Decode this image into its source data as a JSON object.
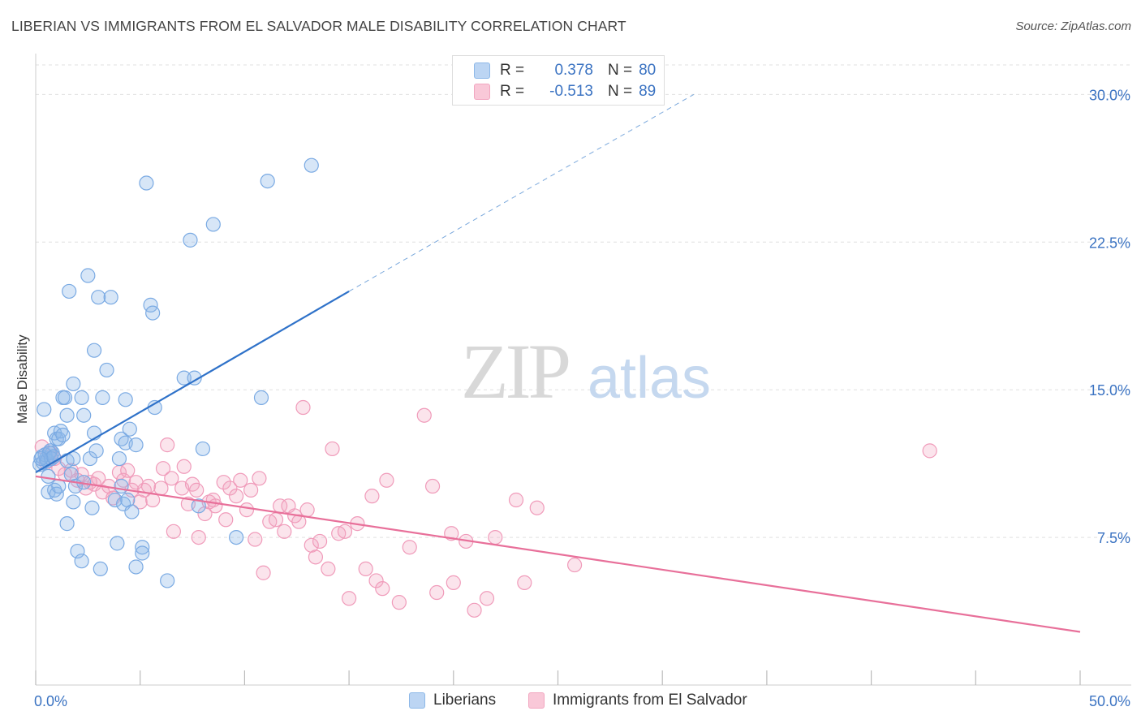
{
  "header": {
    "title": "LIBERIAN VS IMMIGRANTS FROM EL SALVADOR MALE DISABILITY CORRELATION CHART",
    "source": "Source: ZipAtlas.com"
  },
  "watermark": {
    "zip": "ZIP",
    "atlas": "atlas"
  },
  "legend_top": [
    {
      "r_label": "R =",
      "r_value": "0.378",
      "n_label": "N =",
      "n_value": "80",
      "color": "#8db8e8"
    },
    {
      "r_label": "R =",
      "r_value": "-0.513",
      "n_label": "N =",
      "n_value": "89",
      "color": "#f2a6c0"
    }
  ],
  "legend_bottom": [
    {
      "label": "Liberians",
      "color": "#8db8e8"
    },
    {
      "label": "Immigrants from El Salvador",
      "color": "#f2a6c0"
    }
  ],
  "chart_data": {
    "type": "scatter",
    "title": "LIBERIAN VS IMMIGRANTS FROM EL SALVADOR MALE DISABILITY CORRELATION CHART",
    "xlabel": "",
    "ylabel": "Male Disability",
    "xlim": [
      0,
      50
    ],
    "ylim": [
      0,
      31.5
    ],
    "x_tick_labels": [
      "0.0%",
      "50.0%"
    ],
    "y_ticks": [
      7.5,
      15.0,
      22.5,
      30.0
    ],
    "y_tick_labels": [
      "7.5%",
      "15.0%",
      "22.5%",
      "30.0%"
    ],
    "grid": true,
    "legend_position": "top-center",
    "series": [
      {
        "name": "Liberians",
        "color": "#6fa3e0",
        "trend": {
          "x": [
            0,
            15
          ],
          "y": [
            10.8,
            20.0
          ],
          "extended_to": [
            31.5,
            30.0
          ]
        },
        "points": [
          [
            0.2,
            11.2
          ],
          [
            0.3,
            11.6
          ],
          [
            0.4,
            14.0
          ],
          [
            0.5,
            11.5
          ],
          [
            0.6,
            10.6
          ],
          [
            0.6,
            9.8
          ],
          [
            0.7,
            11.9
          ],
          [
            0.8,
            11.8
          ],
          [
            0.9,
            12.8
          ],
          [
            0.9,
            9.9
          ],
          [
            1.0,
            12.5
          ],
          [
            1.0,
            9.7
          ],
          [
            1.1,
            12.5
          ],
          [
            1.1,
            10.1
          ],
          [
            1.2,
            12.9
          ],
          [
            1.3,
            12.7
          ],
          [
            1.3,
            14.6
          ],
          [
            1.4,
            14.6
          ],
          [
            1.5,
            13.7
          ],
          [
            1.5,
            8.2
          ],
          [
            1.5,
            11.4
          ],
          [
            1.6,
            20.0
          ],
          [
            1.7,
            10.7
          ],
          [
            1.8,
            15.3
          ],
          [
            1.8,
            11.5
          ],
          [
            1.8,
            9.3
          ],
          [
            1.9,
            10.1
          ],
          [
            2.0,
            6.8
          ],
          [
            2.2,
            6.3
          ],
          [
            2.2,
            14.6
          ],
          [
            2.3,
            13.7
          ],
          [
            2.3,
            10.3
          ],
          [
            2.5,
            20.8
          ],
          [
            2.6,
            11.5
          ],
          [
            2.7,
            9.0
          ],
          [
            2.8,
            12.8
          ],
          [
            2.8,
            17.0
          ],
          [
            2.9,
            11.9
          ],
          [
            3.0,
            19.7
          ],
          [
            3.1,
            5.9
          ],
          [
            3.2,
            14.6
          ],
          [
            3.4,
            16.0
          ],
          [
            3.6,
            19.7
          ],
          [
            3.8,
            9.4
          ],
          [
            3.9,
            7.2
          ],
          [
            4.0,
            11.5
          ],
          [
            4.1,
            12.5
          ],
          [
            4.1,
            10.1
          ],
          [
            4.2,
            9.2
          ],
          [
            4.3,
            14.5
          ],
          [
            4.3,
            12.3
          ],
          [
            4.4,
            9.4
          ],
          [
            4.5,
            13.0
          ],
          [
            4.6,
            8.8
          ],
          [
            4.8,
            12.2
          ],
          [
            4.8,
            6.0
          ],
          [
            5.1,
            7.0
          ],
          [
            5.1,
            6.7
          ],
          [
            5.3,
            25.5
          ],
          [
            5.5,
            19.3
          ],
          [
            5.6,
            18.9
          ],
          [
            5.7,
            14.1
          ],
          [
            6.3,
            5.3
          ],
          [
            7.1,
            15.6
          ],
          [
            7.4,
            22.6
          ],
          [
            7.6,
            15.6
          ],
          [
            7.8,
            9.1
          ],
          [
            8.0,
            12.0
          ],
          [
            8.5,
            23.4
          ],
          [
            9.6,
            7.5
          ],
          [
            10.8,
            14.6
          ],
          [
            11.1,
            25.6
          ],
          [
            13.2,
            26.4
          ],
          [
            0.35,
            11.3
          ],
          [
            0.45,
            11.7
          ],
          [
            0.55,
            11.4
          ],
          [
            0.65,
            11.8
          ],
          [
            0.75,
            11.5
          ],
          [
            0.85,
            11.6
          ],
          [
            0.25,
            11.5
          ]
        ]
      },
      {
        "name": "Immigrants from El Salvador",
        "color": "#f08db0",
        "trend": {
          "x": [
            0,
            50
          ],
          "y": [
            10.6,
            2.7
          ]
        },
        "points": [
          [
            0.3,
            12.1
          ],
          [
            0.5,
            11.3
          ],
          [
            0.7,
            11.8
          ],
          [
            0.9,
            11.5
          ],
          [
            1.1,
            11.0
          ],
          [
            1.4,
            10.7
          ],
          [
            1.7,
            10.9
          ],
          [
            2.0,
            10.4
          ],
          [
            2.2,
            10.7
          ],
          [
            2.4,
            10.0
          ],
          [
            2.6,
            10.3
          ],
          [
            2.8,
            10.2
          ],
          [
            3.0,
            10.5
          ],
          [
            3.2,
            9.8
          ],
          [
            3.5,
            10.1
          ],
          [
            3.7,
            9.5
          ],
          [
            4.0,
            10.8
          ],
          [
            4.2,
            10.4
          ],
          [
            4.4,
            10.9
          ],
          [
            4.6,
            9.9
          ],
          [
            4.8,
            10.3
          ],
          [
            5.0,
            9.3
          ],
          [
            5.2,
            9.9
          ],
          [
            5.4,
            10.1
          ],
          [
            5.6,
            9.4
          ],
          [
            6.0,
            10.0
          ],
          [
            6.1,
            11.0
          ],
          [
            6.3,
            12.2
          ],
          [
            6.5,
            10.5
          ],
          [
            6.6,
            7.8
          ],
          [
            7.0,
            10.0
          ],
          [
            7.1,
            11.1
          ],
          [
            7.3,
            9.2
          ],
          [
            7.5,
            10.2
          ],
          [
            7.7,
            9.9
          ],
          [
            7.8,
            7.5
          ],
          [
            8.1,
            8.7
          ],
          [
            8.3,
            9.3
          ],
          [
            8.5,
            9.4
          ],
          [
            8.6,
            9.1
          ],
          [
            9.0,
            10.3
          ],
          [
            9.1,
            8.4
          ],
          [
            9.3,
            10.0
          ],
          [
            9.6,
            9.6
          ],
          [
            9.8,
            10.4
          ],
          [
            10.1,
            8.9
          ],
          [
            10.3,
            9.9
          ],
          [
            10.5,
            7.4
          ],
          [
            10.7,
            10.5
          ],
          [
            10.9,
            5.7
          ],
          [
            11.2,
            8.3
          ],
          [
            11.5,
            8.4
          ],
          [
            11.7,
            9.1
          ],
          [
            11.9,
            7.8
          ],
          [
            12.1,
            9.1
          ],
          [
            12.4,
            8.6
          ],
          [
            12.6,
            8.3
          ],
          [
            12.8,
            14.1
          ],
          [
            13.0,
            8.9
          ],
          [
            13.2,
            7.1
          ],
          [
            13.4,
            6.5
          ],
          [
            13.6,
            7.3
          ],
          [
            14.0,
            5.9
          ],
          [
            14.2,
            12.0
          ],
          [
            14.5,
            7.7
          ],
          [
            14.8,
            7.8
          ],
          [
            15.0,
            4.4
          ],
          [
            15.4,
            8.2
          ],
          [
            15.8,
            5.9
          ],
          [
            16.1,
            9.6
          ],
          [
            16.3,
            5.3
          ],
          [
            16.6,
            4.9
          ],
          [
            16.8,
            10.4
          ],
          [
            17.4,
            4.2
          ],
          [
            17.9,
            7.0
          ],
          [
            18.6,
            13.7
          ],
          [
            19.0,
            10.1
          ],
          [
            19.2,
            4.7
          ],
          [
            19.9,
            7.7
          ],
          [
            20.0,
            5.2
          ],
          [
            20.6,
            7.3
          ],
          [
            21.0,
            3.8
          ],
          [
            21.6,
            4.4
          ],
          [
            22.0,
            7.5
          ],
          [
            23.0,
            9.4
          ],
          [
            23.4,
            5.2
          ],
          [
            25.8,
            6.1
          ],
          [
            42.8,
            11.9
          ],
          [
            24.0,
            9.0
          ]
        ]
      }
    ]
  }
}
